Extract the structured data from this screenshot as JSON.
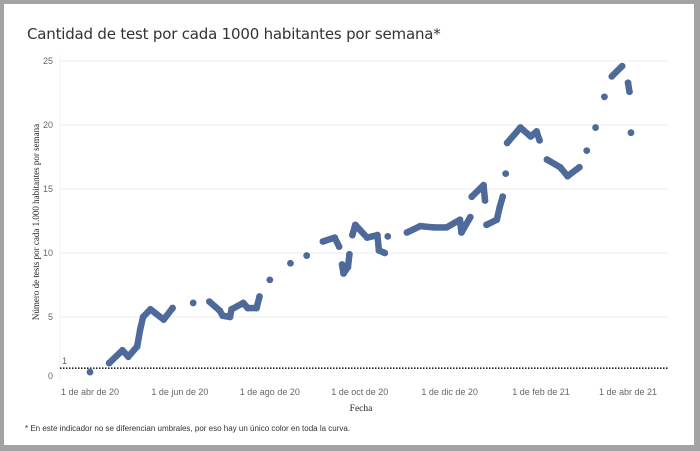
{
  "chart_data": {
    "type": "scatter",
    "title": "Cantidad de test por cada 1000 habitantes por semana*",
    "xlabel": "Fecha",
    "ylabel": "Número de tests por cada 1.000 habitantes por semana",
    "footnote": "* En este indicador no se diferencian umbrales, por eso hay un único color en toda la curva.",
    "ylim": [
      0,
      25
    ],
    "yticks": [
      "0",
      "5",
      "10",
      "15",
      "20",
      "25"
    ],
    "xticks": [
      {
        "date": "2020-04-01",
        "label": "1 de abr de 20"
      },
      {
        "date": "2020-06-01",
        "label": "1 de jun de 20"
      },
      {
        "date": "2020-08-01",
        "label": "1 de ago de 20"
      },
      {
        "date": "2020-10-01",
        "label": "1 de oct de 20"
      },
      {
        "date": "2020-12-01",
        "label": "1 de dic de 20"
      },
      {
        "date": "2021-02-01",
        "label": "1 de feb de 21"
      },
      {
        "date": "2021-04-01",
        "label": "1 de abr de 21"
      }
    ],
    "reference_line": {
      "value": 1,
      "label": "1",
      "style": "dotted"
    },
    "grid": true,
    "color": "#4e6a9a",
    "points": [
      [
        "2020-04-01",
        0.7
      ],
      [
        "2020-04-14",
        1.4
      ],
      [
        "2020-04-23",
        2.4
      ],
      [
        "2020-04-27",
        1.9
      ],
      [
        "2020-05-03",
        2.7
      ],
      [
        "2020-05-05",
        4.0
      ],
      [
        "2020-05-07",
        5.0
      ],
      [
        "2020-05-12",
        5.6
      ],
      [
        "2020-05-21",
        4.8
      ],
      [
        "2020-05-27",
        5.7
      ],
      [
        "2020-06-10",
        6.1
      ],
      [
        "2020-06-21",
        6.2
      ],
      [
        "2020-06-28",
        5.5
      ],
      [
        "2020-06-30",
        5.1
      ],
      [
        "2020-07-05",
        5.0
      ],
      [
        "2020-07-06",
        5.6
      ],
      [
        "2020-07-14",
        6.1
      ],
      [
        "2020-07-17",
        5.7
      ],
      [
        "2020-07-23",
        5.7
      ],
      [
        "2020-07-25",
        6.6
      ],
      [
        "2020-08-01",
        7.9
      ],
      [
        "2020-08-15",
        9.2
      ],
      [
        "2020-08-26",
        9.8
      ],
      [
        "2020-09-06",
        10.9
      ],
      [
        "2020-09-14",
        11.2
      ],
      [
        "2020-09-17",
        10.5
      ],
      [
        "2020-09-19",
        9.1
      ],
      [
        "2020-09-20",
        8.4
      ],
      [
        "2020-09-23",
        8.9
      ],
      [
        "2020-09-24",
        9.9
      ],
      [
        "2020-09-26",
        11.4
      ],
      [
        "2020-09-28",
        12.2
      ],
      [
        "2020-10-06",
        11.2
      ],
      [
        "2020-10-13",
        11.4
      ],
      [
        "2020-10-14",
        10.2
      ],
      [
        "2020-10-18",
        10.0
      ],
      [
        "2020-10-20",
        11.3
      ],
      [
        "2020-11-02",
        11.6
      ],
      [
        "2020-11-11",
        12.1
      ],
      [
        "2020-11-20",
        12.0
      ],
      [
        "2020-11-29",
        12.0
      ],
      [
        "2020-12-08",
        12.6
      ],
      [
        "2020-12-09",
        11.6
      ],
      [
        "2020-12-15",
        12.8
      ],
      [
        "2020-12-16",
        14.4
      ],
      [
        "2020-12-24",
        15.3
      ],
      [
        "2020-12-25",
        14.1
      ],
      [
        "2020-12-26",
        12.2
      ],
      [
        "2021-01-02",
        12.6
      ],
      [
        "2021-01-04",
        13.6
      ],
      [
        "2021-01-06",
        14.4
      ],
      [
        "2021-01-08",
        16.2
      ],
      [
        "2021-01-09",
        18.6
      ],
      [
        "2021-01-18",
        19.8
      ],
      [
        "2021-01-25",
        19.1
      ],
      [
        "2021-01-29",
        19.5
      ],
      [
        "2021-01-31",
        18.8
      ],
      [
        "2021-02-05",
        17.3
      ],
      [
        "2021-02-14",
        16.7
      ],
      [
        "2021-02-19",
        16.0
      ],
      [
        "2021-02-27",
        16.7
      ],
      [
        "2021-03-04",
        18.0
      ],
      [
        "2021-03-10",
        19.8
      ],
      [
        "2021-03-16",
        22.2
      ],
      [
        "2021-03-21",
        23.8
      ],
      [
        "2021-03-28",
        24.6
      ],
      [
        "2021-04-01",
        23.3
      ],
      [
        "2021-04-02",
        22.6
      ],
      [
        "2021-04-03",
        19.4
      ]
    ]
  }
}
